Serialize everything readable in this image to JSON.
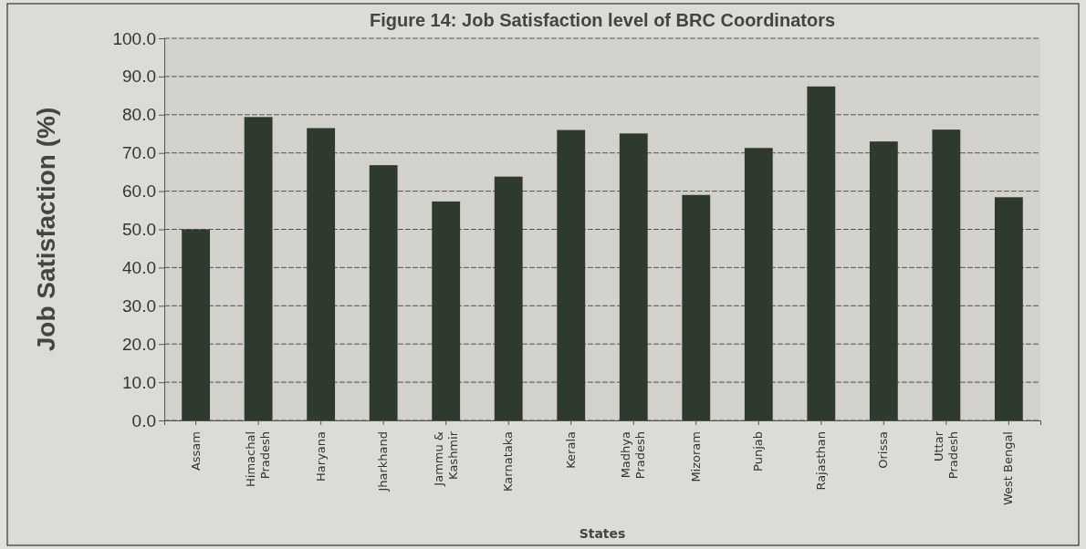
{
  "chart_data": {
    "type": "bar",
    "title": "Figure 14: Job Satisfaction level of BRC Coordinators",
    "xlabel": "States",
    "ylabel": "Job Satisfaction (%)",
    "categories": [
      "Assam",
      "Himachal Pradesh",
      "Haryana",
      "Jharkhand",
      "Jammu & Kashmir",
      "Karnataka",
      "Kerala",
      "Madhya Pradesh",
      "Mizoram",
      "Punjab",
      "Rajasthan",
      "Orissa",
      "Uttar Pradesh",
      "West Bengal"
    ],
    "values": [
      50.0,
      79.4,
      76.5,
      66.8,
      57.3,
      63.8,
      76.0,
      75.1,
      59.0,
      71.3,
      87.4,
      73.0,
      76.1,
      58.4
    ],
    "color": "#2f3a2e",
    "ylim": [
      0,
      100
    ],
    "yticks": [
      {
        "value": 0,
        "label": "0.0"
      },
      {
        "value": 10,
        "label": "10.0"
      },
      {
        "value": 20,
        "label": "20.0"
      },
      {
        "value": 30,
        "label": "30.0"
      },
      {
        "value": 40,
        "label": "40.0"
      },
      {
        "value": 50,
        "label": "50.0"
      },
      {
        "value": 60,
        "label": "60.0"
      },
      {
        "value": 70,
        "label": "70.0"
      },
      {
        "value": 80,
        "label": "80.0"
      },
      {
        "value": 90,
        "label": "90.0"
      },
      {
        "value": 100,
        "label": "100.0"
      }
    ],
    "grid": "y"
  }
}
